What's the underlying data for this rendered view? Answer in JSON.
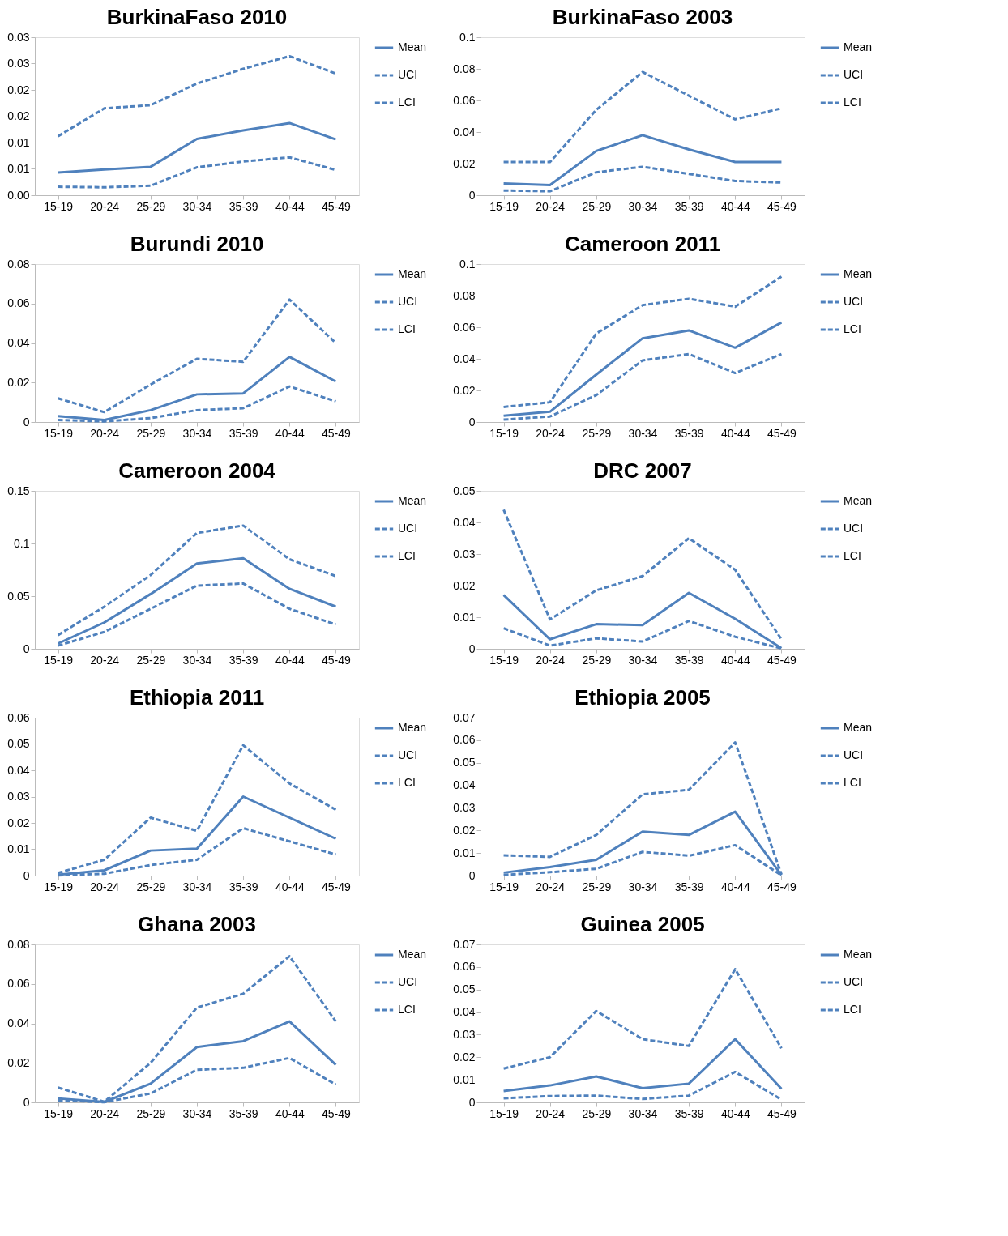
{
  "chart_data": [
    {
      "type": "line",
      "title": "BurkinaFaso 2010",
      "categories": [
        "15-19",
        "20-24",
        "25-29",
        "30-34",
        "35-39",
        "40-44",
        "45-49"
      ],
      "ylim": [
        0,
        0.03
      ],
      "yticks": [
        {
          "value": 0,
          "label": "0.00"
        },
        {
          "value": 0.005,
          "label": "0.01"
        },
        {
          "value": 0.01,
          "label": "0.01"
        },
        {
          "value": 0.015,
          "label": "0.02"
        },
        {
          "value": 0.02,
          "label": "0.02"
        },
        {
          "value": 0.025,
          "label": "0.03"
        },
        {
          "value": 0.03,
          "label": "0.03"
        }
      ],
      "grid": false,
      "legend": "right",
      "series": [
        {
          "name": "Mean",
          "color": "#4f81bd",
          "line_style": "solid",
          "values": [
            0.0043,
            0.0049,
            0.0054,
            0.0107,
            0.0123,
            0.0137,
            0.0106
          ]
        },
        {
          "name": "UCI",
          "color": "#4f81bd",
          "line_style": "dashed",
          "values": [
            0.0112,
            0.0165,
            0.0171,
            0.0212,
            0.024,
            0.0264,
            0.0231
          ]
        },
        {
          "name": "LCI",
          "color": "#4f81bd",
          "line_style": "dashed",
          "values": [
            0.0016,
            0.0015,
            0.0018,
            0.0053,
            0.0064,
            0.0072,
            0.0048
          ]
        }
      ]
    },
    {
      "type": "line",
      "title": "BurkinaFaso 2003",
      "categories": [
        "15-19",
        "20-24",
        "25-29",
        "30-34",
        "35-39",
        "40-44",
        "45-49"
      ],
      "ylim": [
        0,
        0.1
      ],
      "yticks": [
        0,
        0.02,
        0.04,
        0.06,
        0.08,
        0.1
      ],
      "grid": false,
      "legend": "right",
      "series": [
        {
          "name": "Mean",
          "color": "#4f81bd",
          "line_style": "solid",
          "values": [
            0.0074,
            0.0064,
            0.028,
            0.038,
            0.029,
            0.021,
            0.021
          ]
        },
        {
          "name": "UCI",
          "color": "#4f81bd",
          "line_style": "dashed",
          "values": [
            0.021,
            0.021,
            0.054,
            0.078,
            0.063,
            0.048,
            0.055
          ]
        },
        {
          "name": "LCI",
          "color": "#4f81bd",
          "line_style": "dashed",
          "values": [
            0.003,
            0.0025,
            0.0145,
            0.018,
            0.0135,
            0.009,
            0.008
          ]
        }
      ]
    },
    {
      "type": "line",
      "title": "Burundi 2010",
      "categories": [
        "15-19",
        "20-24",
        "25-29",
        "30-34",
        "35-39",
        "40-44",
        "45-49"
      ],
      "ylim": [
        0,
        0.08
      ],
      "yticks": [
        0,
        0.02,
        0.04,
        0.06,
        0.08
      ],
      "grid": false,
      "legend": "right",
      "series": [
        {
          "name": "Mean",
          "color": "#4f81bd",
          "line_style": "solid",
          "values": [
            0.003,
            0.001,
            0.006,
            0.014,
            0.0145,
            0.033,
            0.0205
          ]
        },
        {
          "name": "UCI",
          "color": "#4f81bd",
          "line_style": "dashed",
          "values": [
            0.012,
            0.005,
            0.019,
            0.032,
            0.0305,
            0.062,
            0.04
          ]
        },
        {
          "name": "LCI",
          "color": "#4f81bd",
          "line_style": "dashed",
          "values": [
            0.001,
            0.0003,
            0.002,
            0.006,
            0.007,
            0.018,
            0.0105
          ]
        }
      ]
    },
    {
      "type": "line",
      "title": "Cameroon 2011",
      "categories": [
        "15-19",
        "20-24",
        "25-29",
        "30-34",
        "35-39",
        "40-44",
        "45-49"
      ],
      "ylim": [
        0,
        0.1
      ],
      "yticks": [
        0,
        0.02,
        0.04,
        0.06,
        0.08,
        0.1
      ],
      "grid": false,
      "legend": "right",
      "series": [
        {
          "name": "Mean",
          "color": "#4f81bd",
          "line_style": "solid",
          "values": [
            0.004,
            0.0065,
            0.03,
            0.053,
            0.058,
            0.047,
            0.063
          ]
        },
        {
          "name": "UCI",
          "color": "#4f81bd",
          "line_style": "dashed",
          "values": [
            0.0095,
            0.0125,
            0.056,
            0.074,
            0.078,
            0.073,
            0.092
          ]
        },
        {
          "name": "LCI",
          "color": "#4f81bd",
          "line_style": "dashed",
          "values": [
            0.0015,
            0.0035,
            0.017,
            0.039,
            0.043,
            0.031,
            0.043
          ]
        }
      ]
    },
    {
      "type": "line",
      "title": "Cameroon 2004",
      "categories": [
        "15-19",
        "20-24",
        "25-29",
        "30-34",
        "35-39",
        "40-44",
        "45-49"
      ],
      "ylim": [
        0,
        0.15
      ],
      "yticks": [
        0,
        0.05,
        0.1,
        0.15
      ],
      "grid": false,
      "legend": "right",
      "series": [
        {
          "name": "Mean",
          "color": "#4f81bd",
          "line_style": "solid",
          "values": [
            0.005,
            0.025,
            0.052,
            0.081,
            0.086,
            0.057,
            0.04
          ]
        },
        {
          "name": "UCI",
          "color": "#4f81bd",
          "line_style": "dashed",
          "values": [
            0.013,
            0.04,
            0.07,
            0.11,
            0.117,
            0.085,
            0.069
          ]
        },
        {
          "name": "LCI",
          "color": "#4f81bd",
          "line_style": "dashed",
          "values": [
            0.003,
            0.016,
            0.038,
            0.06,
            0.062,
            0.038,
            0.023
          ]
        }
      ]
    },
    {
      "type": "line",
      "title": "DRC 2007",
      "categories": [
        "15-19",
        "20-24",
        "25-29",
        "30-34",
        "35-39",
        "40-44",
        "45-49"
      ],
      "ylim": [
        0,
        0.05
      ],
      "yticks": [
        0,
        0.01,
        0.02,
        0.03,
        0.04,
        0.05
      ],
      "grid": false,
      "legend": "right",
      "series": [
        {
          "name": "Mean",
          "color": "#4f81bd",
          "line_style": "solid",
          "values": [
            0.017,
            0.003,
            0.0078,
            0.0075,
            0.0177,
            0.0095,
            0.0002
          ]
        },
        {
          "name": "UCI",
          "color": "#4f81bd",
          "line_style": "dashed",
          "values": [
            0.044,
            0.0093,
            0.0185,
            0.023,
            0.035,
            0.025,
            0.003
          ]
        },
        {
          "name": "LCI",
          "color": "#4f81bd",
          "line_style": "dashed",
          "values": [
            0.0065,
            0.001,
            0.0033,
            0.0023,
            0.0088,
            0.0038,
            0.0001
          ]
        }
      ]
    },
    {
      "type": "line",
      "title": "Ethiopia 2011",
      "categories": [
        "15-19",
        "20-24",
        "25-29",
        "30-34",
        "35-39",
        "40-44",
        "45-49"
      ],
      "ylim": [
        0,
        0.06
      ],
      "yticks": [
        0,
        0.01,
        0.02,
        0.03,
        0.04,
        0.05,
        0.06
      ],
      "grid": false,
      "legend": "right",
      "series": [
        {
          "name": "Mean",
          "color": "#4f81bd",
          "line_style": "solid",
          "values": [
            0.0003,
            0.002,
            0.0095,
            0.0102,
            0.03,
            0.022,
            0.014
          ]
        },
        {
          "name": "UCI",
          "color": "#4f81bd",
          "line_style": "dashed",
          "values": [
            0.001,
            0.006,
            0.022,
            0.017,
            0.0495,
            0.035,
            0.025
          ]
        },
        {
          "name": "LCI",
          "color": "#4f81bd",
          "line_style": "dashed",
          "values": [
            0.0001,
            0.0007,
            0.004,
            0.006,
            0.018,
            0.013,
            0.008
          ]
        }
      ]
    },
    {
      "type": "line",
      "title": "Ethiopia 2005",
      "categories": [
        "15-19",
        "20-24",
        "25-29",
        "30-34",
        "35-39",
        "40-44",
        "45-49"
      ],
      "ylim": [
        0,
        0.07
      ],
      "yticks": [
        0,
        0.01,
        0.02,
        0.03,
        0.04,
        0.05,
        0.06,
        0.07
      ],
      "grid": false,
      "legend": "right",
      "series": [
        {
          "name": "Mean",
          "color": "#4f81bd",
          "line_style": "solid",
          "values": [
            0.0013,
            0.0038,
            0.007,
            0.0195,
            0.018,
            0.0283,
            0.0002
          ]
        },
        {
          "name": "UCI",
          "color": "#4f81bd",
          "line_style": "dashed",
          "values": [
            0.009,
            0.0083,
            0.018,
            0.036,
            0.038,
            0.059,
            0.0005
          ]
        },
        {
          "name": "LCI",
          "color": "#4f81bd",
          "line_style": "dashed",
          "values": [
            0.0003,
            0.0015,
            0.003,
            0.0105,
            0.0088,
            0.0135,
            0.0001
          ]
        }
      ]
    },
    {
      "type": "line",
      "title": "Ghana 2003",
      "categories": [
        "15-19",
        "20-24",
        "25-29",
        "30-34",
        "35-39",
        "40-44",
        "45-49"
      ],
      "ylim": [
        0,
        0.08
      ],
      "yticks": [
        0,
        0.02,
        0.04,
        0.06,
        0.08
      ],
      "grid": false,
      "legend": "right",
      "series": [
        {
          "name": "Mean",
          "color": "#4f81bd",
          "line_style": "solid",
          "values": [
            0.002,
            0.0002,
            0.0095,
            0.028,
            0.031,
            0.041,
            0.019
          ]
        },
        {
          "name": "UCI",
          "color": "#4f81bd",
          "line_style": "dashed",
          "values": [
            0.0075,
            0.0003,
            0.02,
            0.048,
            0.055,
            0.074,
            0.041
          ]
        },
        {
          "name": "LCI",
          "color": "#4f81bd",
          "line_style": "dashed",
          "values": [
            0.001,
            0.0001,
            0.0045,
            0.0165,
            0.0175,
            0.0225,
            0.009
          ]
        }
      ]
    },
    {
      "type": "line",
      "title": "Guinea 2005",
      "categories": [
        "15-19",
        "20-24",
        "25-29",
        "30-34",
        "35-39",
        "40-44",
        "45-49"
      ],
      "ylim": [
        0,
        0.07
      ],
      "yticks": [
        0,
        0.01,
        0.02,
        0.03,
        0.04,
        0.05,
        0.06,
        0.07
      ],
      "grid": false,
      "legend": "right",
      "series": [
        {
          "name": "Mean",
          "color": "#4f81bd",
          "line_style": "solid",
          "values": [
            0.005,
            0.0075,
            0.0115,
            0.0063,
            0.0083,
            0.028,
            0.006
          ]
        },
        {
          "name": "UCI",
          "color": "#4f81bd",
          "line_style": "dashed",
          "values": [
            0.015,
            0.02,
            0.0405,
            0.028,
            0.025,
            0.059,
            0.024
          ]
        },
        {
          "name": "LCI",
          "color": "#4f81bd",
          "line_style": "dashed",
          "values": [
            0.0018,
            0.0028,
            0.003,
            0.0015,
            0.003,
            0.0135,
            0.0012
          ]
        }
      ]
    }
  ]
}
